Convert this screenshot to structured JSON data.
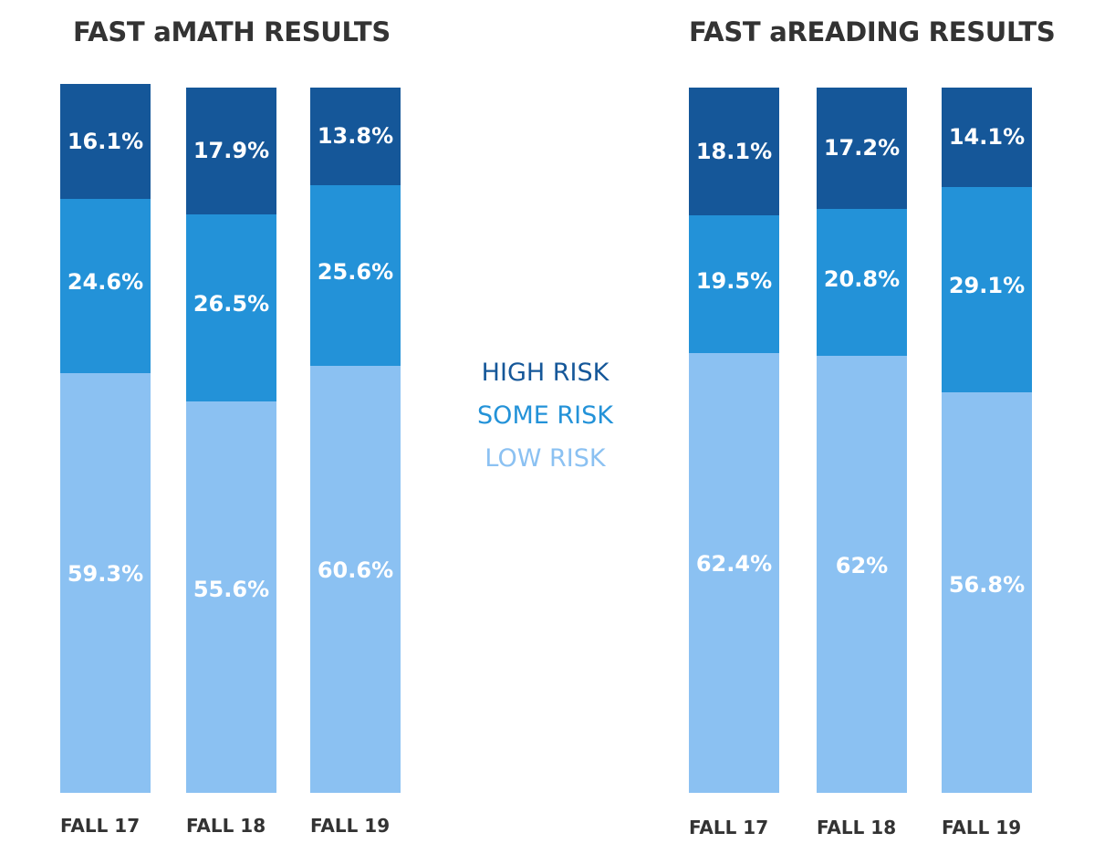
{
  "colors": {
    "high_risk": "#155799",
    "some_risk": "#2392d8",
    "low_risk": "#8bc1f2"
  },
  "legend": {
    "items": [
      {
        "label": "HIGH RISK",
        "color": "#155799"
      },
      {
        "label": "SOME RISK",
        "color": "#2392d8"
      },
      {
        "label": "LOW RISK",
        "color": "#8bc1f2"
      }
    ]
  },
  "chart_data": [
    {
      "type": "bar",
      "stacked": true,
      "title": "FAST aMATH RESULTS",
      "categories": [
        "FALL 17",
        "FALL 18",
        "FALL 19"
      ],
      "series": [
        {
          "name": "LOW RISK",
          "values": [
            59.3,
            55.6,
            60.6
          ],
          "labels": [
            "59.3%",
            "55.6%",
            "60.6%"
          ]
        },
        {
          "name": "SOME RISK",
          "values": [
            24.6,
            26.5,
            25.6
          ],
          "labels": [
            "24.6%",
            "26.5%",
            "25.6%"
          ]
        },
        {
          "name": "HIGH RISK",
          "values": [
            16.1,
            17.9,
            13.8
          ],
          "labels": [
            "16.1%",
            "17.9%",
            "13.8%"
          ]
        }
      ]
    },
    {
      "type": "bar",
      "stacked": true,
      "title": "FAST aREADING RESULTS",
      "categories": [
        "FALL 17",
        "FALL 18",
        "FALL 19"
      ],
      "series": [
        {
          "name": "LOW RISK",
          "values": [
            62.4,
            62,
            56.8
          ],
          "labels": [
            "62.4%",
            "62%",
            "56.8%"
          ]
        },
        {
          "name": "SOME RISK",
          "values": [
            19.5,
            20.8,
            29.1
          ],
          "labels": [
            "19.5%",
            "20.8%",
            "29.1%"
          ]
        },
        {
          "name": "HIGH RISK",
          "values": [
            18.1,
            17.2,
            14.1
          ],
          "labels": [
            "18.1%",
            "17.2%",
            "14.1%"
          ]
        }
      ]
    }
  ]
}
